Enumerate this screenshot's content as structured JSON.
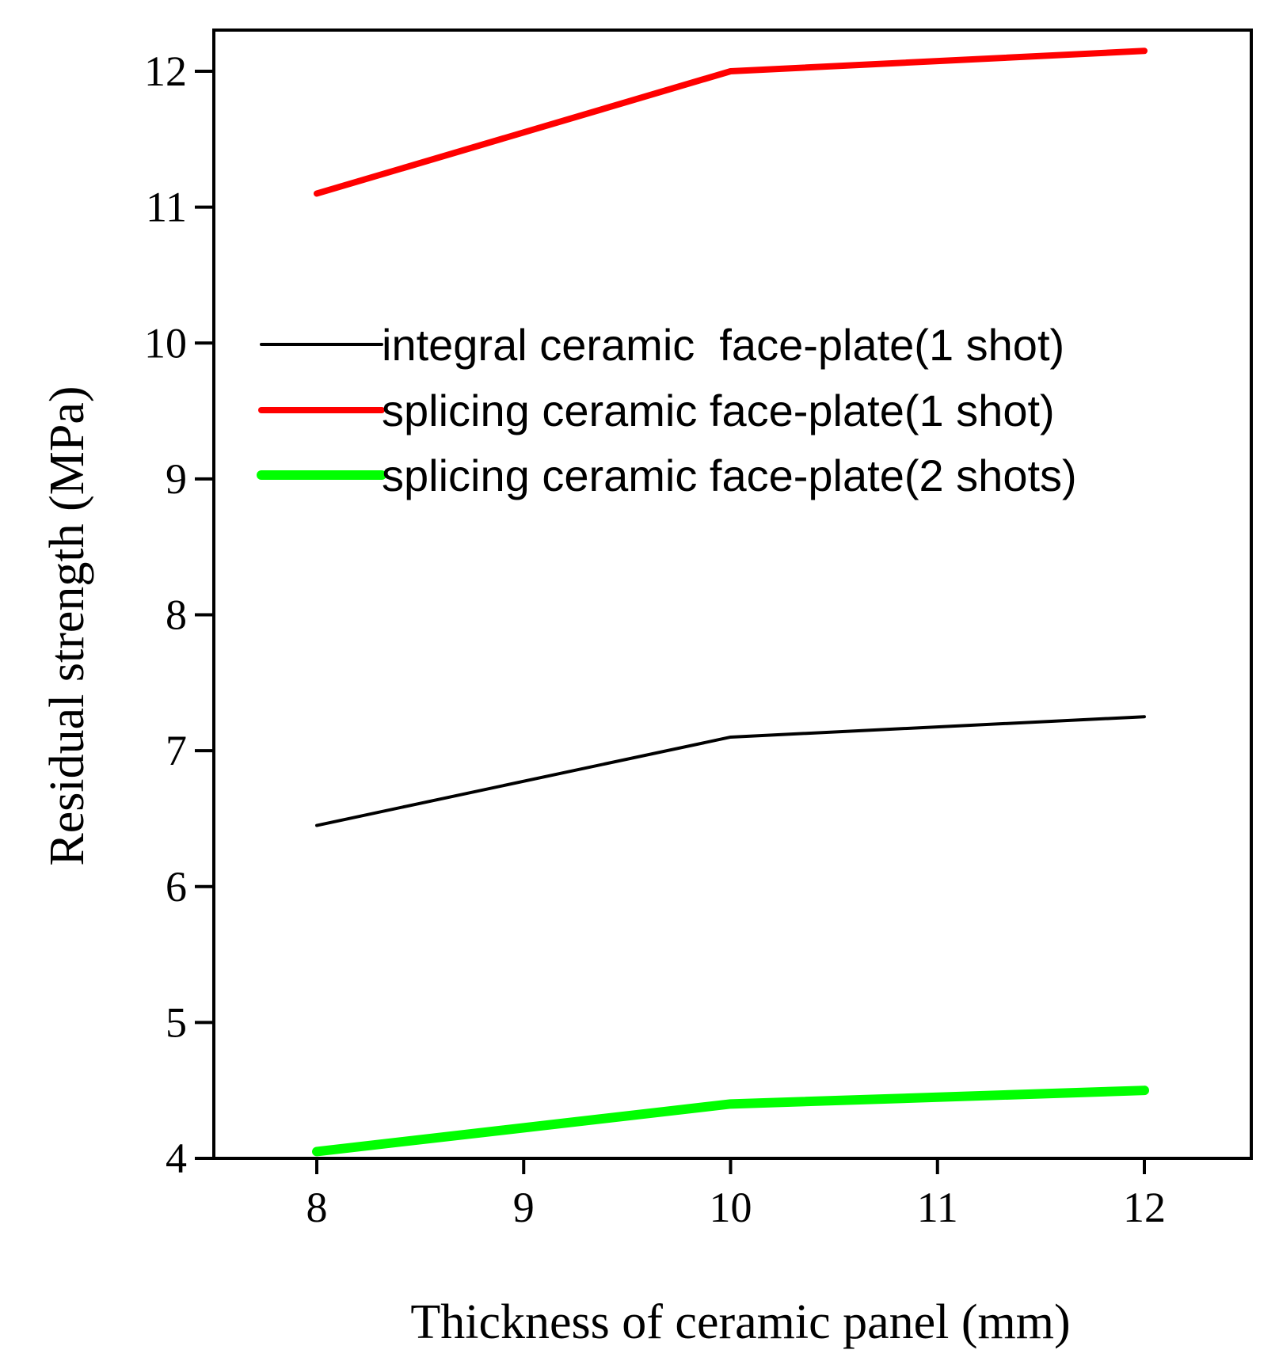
{
  "chart_data": {
    "type": "line",
    "title": "",
    "xlabel": "Thickness of ceramic panel (mm)",
    "ylabel": "Residual strength (MPa)",
    "xlim": [
      7.5,
      12.5
    ],
    "ylim": [
      4,
      12.3
    ],
    "xticks": [
      8,
      9,
      10,
      11,
      12
    ],
    "yticks": [
      4,
      5,
      6,
      7,
      8,
      9,
      10,
      11,
      12
    ],
    "x": [
      8,
      10,
      12
    ],
    "series": [
      {
        "name": "integral ceramic  face-plate(1 shot)",
        "values": [
          6.45,
          7.1,
          7.25
        ],
        "color": "#000000",
        "style": "thin"
      },
      {
        "name": "splicing ceramic face-plate(1 shot)",
        "values": [
          11.1,
          12.0,
          12.15
        ],
        "color": "#ff0000",
        "style": "medium"
      },
      {
        "name": "splicing ceramic face-plate(2 shots)",
        "values": [
          4.05,
          4.4,
          4.5
        ],
        "color": "#00ff00",
        "style": "thick"
      }
    ],
    "legend_position": "upper-middle",
    "grid": false
  }
}
